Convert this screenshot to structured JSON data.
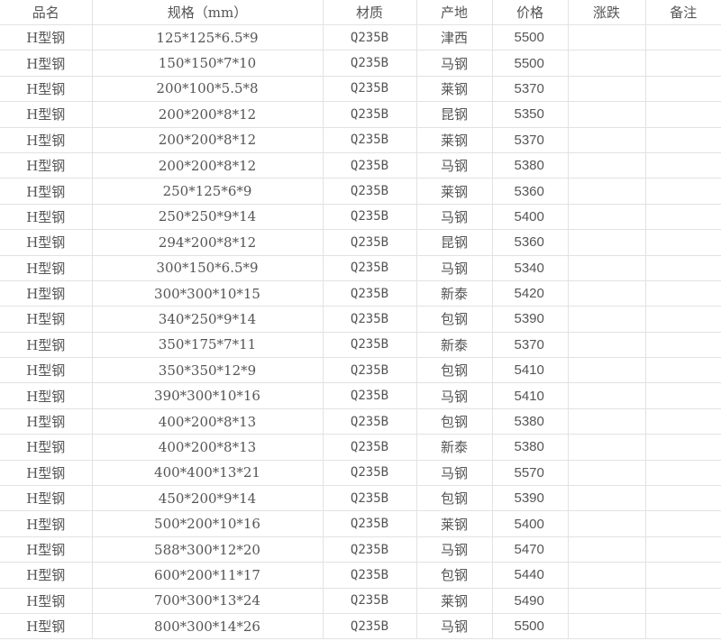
{
  "headers": [
    "品名",
    "规格（mm）",
    "材质",
    "产地",
    "价格",
    "涨跌",
    "备注"
  ],
  "rows": [
    [
      "H型钢",
      "125*125*6.5*9",
      "Q235B",
      "津西",
      "5500",
      "",
      ""
    ],
    [
      "H型钢",
      "150*150*7*10",
      "Q235B",
      "马钢",
      "5500",
      "",
      ""
    ],
    [
      "H型钢",
      "200*100*5.5*8",
      "Q235B",
      "莱钢",
      "5370",
      "",
      ""
    ],
    [
      "H型钢",
      "200*200*8*12",
      "Q235B",
      "昆钢",
      "5350",
      "",
      ""
    ],
    [
      "H型钢",
      "200*200*8*12",
      "Q235B",
      "莱钢",
      "5370",
      "",
      ""
    ],
    [
      "H型钢",
      "200*200*8*12",
      "Q235B",
      "马钢",
      "5380",
      "",
      ""
    ],
    [
      "H型钢",
      "250*125*6*9",
      "Q235B",
      "莱钢",
      "5360",
      "",
      ""
    ],
    [
      "H型钢",
      "250*250*9*14",
      "Q235B",
      "马钢",
      "5400",
      "",
      ""
    ],
    [
      "H型钢",
      "294*200*8*12",
      "Q235B",
      "昆钢",
      "5360",
      "",
      ""
    ],
    [
      "H型钢",
      "300*150*6.5*9",
      "Q235B",
      "马钢",
      "5340",
      "",
      ""
    ],
    [
      "H型钢",
      "300*300*10*15",
      "Q235B",
      "新泰",
      "5420",
      "",
      ""
    ],
    [
      "H型钢",
      "340*250*9*14",
      "Q235B",
      "包钢",
      "5390",
      "",
      ""
    ],
    [
      "H型钢",
      "350*175*7*11",
      "Q235B",
      "新泰",
      "5370",
      "",
      ""
    ],
    [
      "H型钢",
      "350*350*12*9",
      "Q235B",
      "包钢",
      "5410",
      "",
      ""
    ],
    [
      "H型钢",
      "390*300*10*16",
      "Q235B",
      "马钢",
      "5410",
      "",
      ""
    ],
    [
      "H型钢",
      "400*200*8*13",
      "Q235B",
      "包钢",
      "5380",
      "",
      ""
    ],
    [
      "H型钢",
      "400*200*8*13",
      "Q235B",
      "新泰",
      "5380",
      "",
      ""
    ],
    [
      "H型钢",
      "400*400*13*21",
      "Q235B",
      "马钢",
      "5570",
      "",
      ""
    ],
    [
      "H型钢",
      "450*200*9*14",
      "Q235B",
      "包钢",
      "5390",
      "",
      ""
    ],
    [
      "H型钢",
      "500*200*10*16",
      "Q235B",
      "莱钢",
      "5400",
      "",
      ""
    ],
    [
      "H型钢",
      "588*300*12*20",
      "Q235B",
      "马钢",
      "5470",
      "",
      ""
    ],
    [
      "H型钢",
      "600*200*11*17",
      "Q235B",
      "包钢",
      "5440",
      "",
      ""
    ],
    [
      "H型钢",
      "700*300*13*24",
      "Q235B",
      "莱钢",
      "5490",
      "",
      ""
    ],
    [
      "H型钢",
      "800*300*14*26",
      "Q235B",
      "马钢",
      "5500",
      "",
      ""
    ]
  ]
}
